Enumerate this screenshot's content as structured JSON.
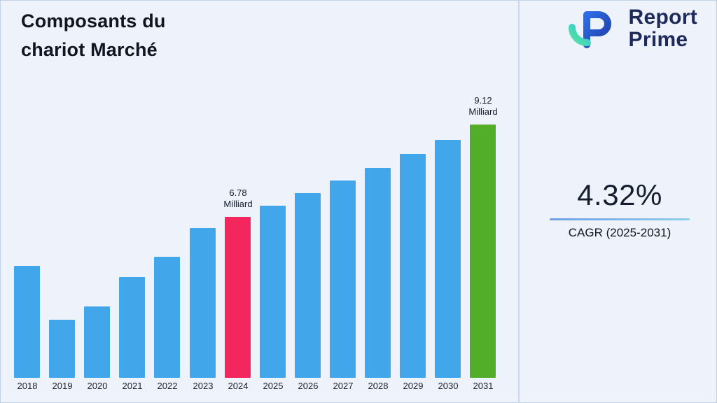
{
  "header": {
    "title_line1": "Composants du",
    "title_line2": "chariot Marché",
    "brand": {
      "name_line1": "Report",
      "name_line2": "Prime"
    }
  },
  "stats": {
    "cagr_value": "4.32%",
    "cagr_label": "CAGR (2025-2031)"
  },
  "colors": {
    "background": "#edf2fb",
    "bar_blue": "#41a7ea",
    "bar_pink": "#f4265e",
    "bar_green": "#52ae29",
    "brand_navy": "#1e2a5a"
  },
  "chart_data": {
    "type": "bar",
    "title": "Composants du chariot Marché",
    "unit": "Milliard",
    "categories": [
      "2018",
      "2019",
      "2020",
      "2021",
      "2022",
      "2023",
      "2024",
      "2025",
      "2026",
      "2027",
      "2028",
      "2029",
      "2030",
      "2031"
    ],
    "values": [
      5.55,
      4.18,
      4.52,
      5.25,
      5.78,
      6.5,
      6.78,
      7.07,
      7.38,
      7.7,
      8.03,
      8.38,
      8.74,
      9.12
    ],
    "bar_color_default": "#41a7ea",
    "bar_color_overrides": {
      "2024": "#f4265e",
      "2031": "#52ae29"
    },
    "annotations": [
      {
        "category": "2024",
        "line1": "6.78",
        "line2": "Milliard"
      },
      {
        "category": "2031",
        "line1": "9.12",
        "line2": "Milliard"
      }
    ],
    "ylim": [
      2.7,
      10.3
    ],
    "xlabel": "",
    "ylabel": "",
    "grid": false,
    "legend": false
  }
}
